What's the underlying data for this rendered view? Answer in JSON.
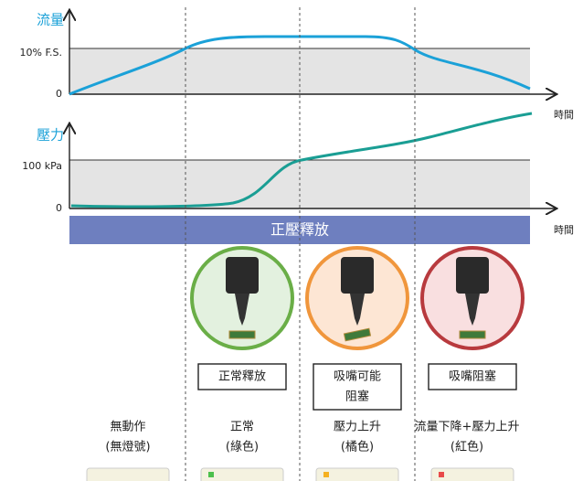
{
  "flow_panel": {
    "axis_label": "流量",
    "upper_label": "10% F.S.",
    "zero_label": "0",
    "time_label": "時間"
  },
  "pressure_panel": {
    "axis_label": "壓力",
    "upper_label": "100 kPa",
    "zero_label": "0",
    "time_label": "時間"
  },
  "bar_label": "正壓釋放",
  "stages": [
    {
      "box_lines": [
        "正常釋放"
      ],
      "status_lines": [
        "正常",
        "(綠色)"
      ]
    },
    {
      "box_lines": [
        "吸嘴可能",
        "阻塞"
      ],
      "status_lines": [
        "壓力上升",
        "(橘色)"
      ]
    },
    {
      "box_lines": [
        "吸嘴阻塞"
      ],
      "status_lines": [
        "流量下降+壓力上升",
        "(紅色)"
      ]
    }
  ],
  "idle_status_lines": [
    "無動作",
    "(無燈號)"
  ]
}
